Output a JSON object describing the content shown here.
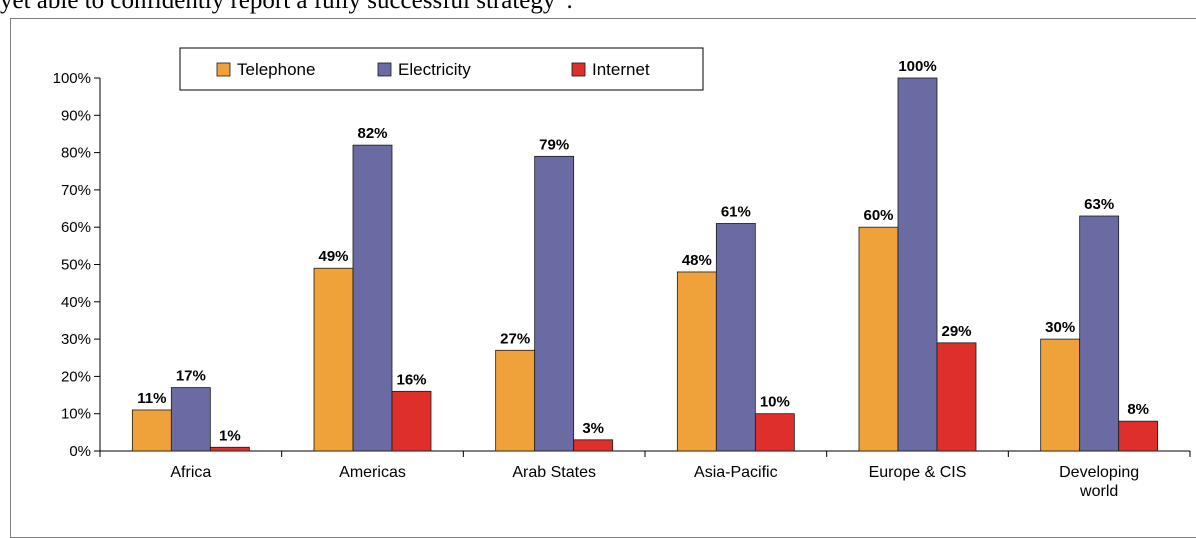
{
  "document": {
    "text_above": "yet able to confidently report a fully successful strategy”."
  },
  "colors": {
    "telephone": "#f0a23a",
    "electricity": "#6b6ba4",
    "internet": "#de2f2b"
  },
  "chart_data": {
    "type": "bar",
    "title": "",
    "xlabel": "",
    "ylabel": "",
    "ylim": [
      0,
      100
    ],
    "y_ticks": [
      0,
      10,
      20,
      30,
      40,
      50,
      60,
      70,
      80,
      90,
      100
    ],
    "y_tick_labels": [
      "0%",
      "10%",
      "20%",
      "30%",
      "40%",
      "50%",
      "60%",
      "70%",
      "80%",
      "90%",
      "100%"
    ],
    "grid": false,
    "legend_position": "top-left",
    "categories": [
      [
        "Africa"
      ],
      [
        "Americas"
      ],
      [
        "Arab States"
      ],
      [
        "Asia-Pacific"
      ],
      [
        "Europe & CIS"
      ],
      [
        "Developing",
        "world"
      ]
    ],
    "series": [
      {
        "name": "Telephone",
        "values": [
          11,
          49,
          27,
          48,
          60,
          30
        ],
        "labels": [
          "11%",
          "49%",
          "27%",
          "48%",
          "60%",
          "30%"
        ]
      },
      {
        "name": "Electricity",
        "values": [
          17,
          82,
          79,
          61,
          100,
          63
        ],
        "labels": [
          "17%",
          "82%",
          "79%",
          "61%",
          "100%",
          "63%"
        ]
      },
      {
        "name": "Internet",
        "values": [
          1,
          16,
          3,
          10,
          29,
          8
        ],
        "labels": [
          "1%",
          "16%",
          "3%",
          "10%",
          "29%",
          "8%"
        ]
      }
    ]
  }
}
